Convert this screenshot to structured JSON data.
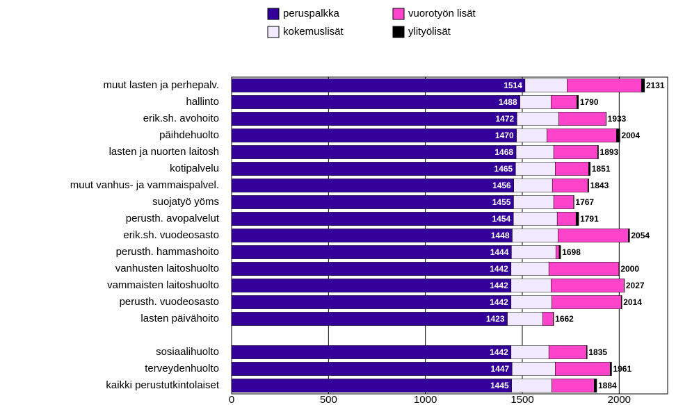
{
  "chart_data": {
    "type": "stacked_barh",
    "categories": [
      "muut lasten ja perhepalv.",
      "hallinto",
      "erik.sh. avohoito",
      "päihdehuolto",
      "lasten ja nuorten laitosh",
      "kotipalvelu",
      "muut vanhus- ja vammaispalvel.",
      "suojatyö yöms",
      "perusth. avopalvelut",
      "erik.sh. vuodeosasto",
      "perusth. hammashoito",
      "vanhusten laitoshuolto",
      "vammaisten laitoshuolto",
      "perusth. vuodeosasto",
      "lasten päivähoito",
      null,
      "sosiaalihuolto",
      "terveydenhuolto",
      "kaikki perustutkintolaiset"
    ],
    "series": [
      {
        "name": "peruspalkka",
        "color": "#330099",
        "values": [
          1514,
          1488,
          1472,
          1470,
          1468,
          1465,
          1456,
          1455,
          1454,
          1448,
          1444,
          1442,
          1442,
          1442,
          1423,
          null,
          1442,
          1447,
          1445
        ]
      },
      {
        "name": "kokemuslisät",
        "color": "#f2eaff",
        "values": [
          217,
          160,
          216,
          157,
          194,
          205,
          199,
          207,
          226,
          236,
          229,
          195,
          206,
          210,
          182,
          null,
          195,
          223,
          207
        ]
      },
      {
        "name": "vuorotyön lisät",
        "color": "#ff44cc",
        "values": [
          384,
          133,
          244,
          359,
          227,
          172,
          183,
          103,
          97,
          363,
          17,
          361,
          377,
          359,
          55,
          null,
          194,
          283,
          219
        ]
      },
      {
        "name": "ylityölisät",
        "color": "#000000",
        "values": [
          16,
          9,
          1,
          18,
          4,
          9,
          5,
          2,
          14,
          7,
          8,
          2,
          2,
          3,
          2,
          null,
          4,
          8,
          13
        ]
      }
    ],
    "totals": [
      2131,
      1790,
      1933,
      2004,
      1893,
      1851,
      1843,
      1767,
      1791,
      2054,
      1698,
      2000,
      2027,
      2014,
      1662,
      null,
      1835,
      1961,
      1884
    ],
    "xlim": [
      0,
      2250
    ],
    "xticks": [
      0,
      500,
      1000,
      1500,
      2000
    ],
    "grid": true,
    "legend": "top"
  }
}
